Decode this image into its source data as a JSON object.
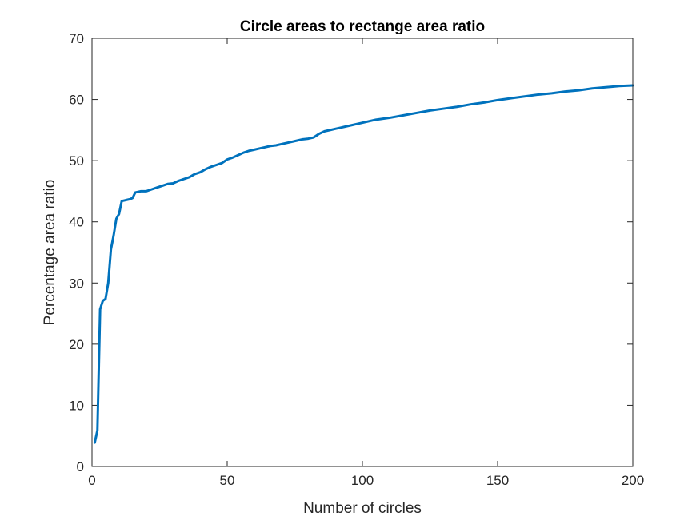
{
  "chart_data": {
    "type": "line",
    "title": "Circle areas to rectange area ratio",
    "xlabel": "Number of circles",
    "ylabel": "Percentage area ratio",
    "xlim": [
      0,
      200
    ],
    "ylim": [
      0,
      70
    ],
    "xticks": [
      0,
      50,
      100,
      150,
      200
    ],
    "yticks": [
      0,
      10,
      20,
      30,
      40,
      50,
      60,
      70
    ],
    "grid": false,
    "line_color": "#0072BD",
    "series": [
      {
        "x": [
          1,
          2,
          3,
          4,
          5,
          6,
          7,
          8,
          9,
          10,
          11,
          12,
          13,
          14,
          15,
          16,
          17,
          18,
          19,
          20,
          22,
          24,
          26,
          28,
          30,
          32,
          34,
          36,
          38,
          40,
          42,
          44,
          46,
          48,
          50,
          52,
          54,
          56,
          58,
          60,
          62,
          64,
          66,
          68,
          70,
          72,
          74,
          76,
          78,
          80,
          82,
          84,
          86,
          88,
          90,
          92,
          94,
          96,
          98,
          100,
          105,
          110,
          115,
          120,
          125,
          130,
          135,
          140,
          145,
          150,
          155,
          160,
          165,
          170,
          175,
          180,
          185,
          190,
          195,
          200
        ],
        "y": [
          3.9,
          5.9,
          25.7,
          27.1,
          27.4,
          30.0,
          35.5,
          37.8,
          40.5,
          41.3,
          43.4,
          43.5,
          43.6,
          43.7,
          43.9,
          44.8,
          44.9,
          45.0,
          45.0,
          45.0,
          45.3,
          45.6,
          45.9,
          46.2,
          46.3,
          46.7,
          47.0,
          47.3,
          47.8,
          48.1,
          48.6,
          49.0,
          49.3,
          49.6,
          50.2,
          50.5,
          50.9,
          51.3,
          51.6,
          51.8,
          52.0,
          52.2,
          52.4,
          52.5,
          52.7,
          52.9,
          53.1,
          53.3,
          53.5,
          53.6,
          53.8,
          54.4,
          54.8,
          55.0,
          55.2,
          55.4,
          55.6,
          55.8,
          56.0,
          56.2,
          56.7,
          57.0,
          57.4,
          57.8,
          58.2,
          58.5,
          58.8,
          59.2,
          59.5,
          59.9,
          60.2,
          60.5,
          60.8,
          61.0,
          61.3,
          61.5,
          61.8,
          62.0,
          62.2,
          62.3
        ]
      }
    ]
  }
}
